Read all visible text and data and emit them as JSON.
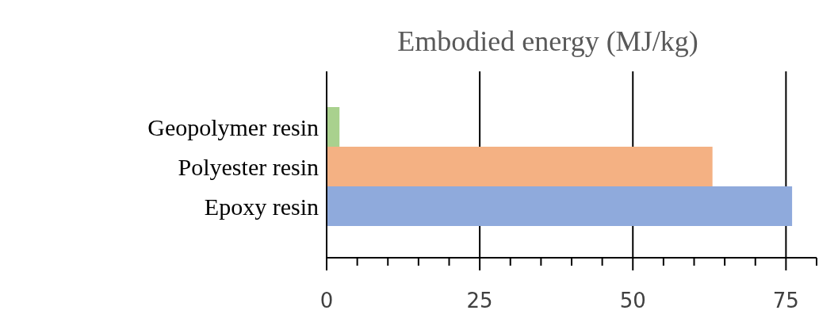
{
  "chart_data": {
    "type": "bar",
    "orientation": "horizontal",
    "title": "Embodied energy (MJ/kg)",
    "categories": [
      "Geopolymer resin",
      "Polyester resin",
      "Epoxy resin"
    ],
    "values": [
      2.1,
      63,
      76
    ],
    "colors": [
      "#a9d18e",
      "#f4b183",
      "#8faadc"
    ],
    "xlim": [
      0,
      80
    ],
    "xticks": [
      0,
      {
        "value": 5,
        "label": null
      },
      {
        "value": 10,
        "label": null
      },
      {
        "value": 15,
        "label": null
      },
      {
        "value": 20,
        "label": null
      },
      25,
      {
        "value": 30,
        "label": null
      },
      {
        "value": 35,
        "label": null
      },
      {
        "value": 40,
        "label": null
      },
      {
        "value": 45,
        "label": null
      },
      50,
      {
        "value": 55,
        "label": null
      },
      {
        "value": 60,
        "label": null
      },
      {
        "value": 65,
        "label": null
      },
      {
        "value": 70,
        "label": null
      },
      75,
      {
        "value": 80,
        "label": null
      }
    ],
    "grid": "x"
  }
}
